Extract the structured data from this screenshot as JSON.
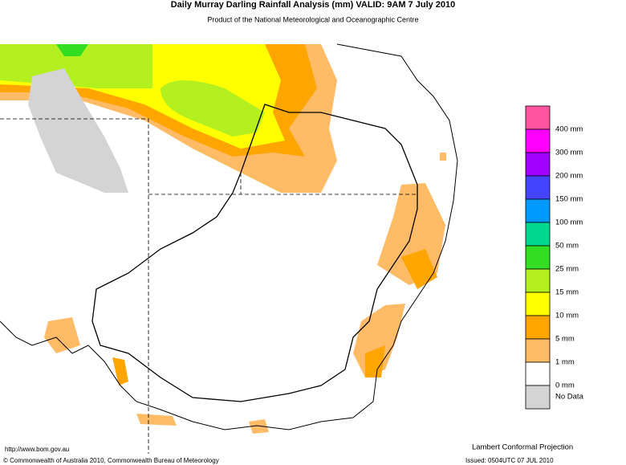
{
  "header": {
    "title": "Daily Murray Darling Rainfall Analysis (mm)  VALID: 9AM  7 July 2010",
    "subtitle": "Product of the National Meteorological and Oceanographic Centre"
  },
  "legend": {
    "items": [
      {
        "color": "#ff55a0",
        "label": "400 mm"
      },
      {
        "color": "#ff00ff",
        "label": "300 mm"
      },
      {
        "color": "#a000ff",
        "label": "200 mm"
      },
      {
        "color": "#4444ff",
        "label": "150 mm"
      },
      {
        "color": "#0099ff",
        "label": "100 mm"
      },
      {
        "color": "#00d890",
        "label": "50 mm"
      },
      {
        "color": "#33dd22",
        "label": "25 mm"
      },
      {
        "color": "#b4f020",
        "label": "15 mm"
      },
      {
        "color": "#ffff00",
        "label": "10 mm"
      },
      {
        "color": "#ffa500",
        "label": "5 mm"
      },
      {
        "color": "#ffbb66",
        "label": "1 mm"
      },
      {
        "color": "#ffffff",
        "label": "0 mm"
      },
      {
        "color": "#d4d4d4",
        "label": "No Data"
      }
    ]
  },
  "footer": {
    "url": "http://www.bom.gov.au",
    "copyright": "© Commonwealth of Australia 2010, Commonwealth Bureau of Meteorology",
    "projection": "Lambert Conformal Projection",
    "issued": "Issued: 0504UTC 07 JUL 2010"
  }
}
